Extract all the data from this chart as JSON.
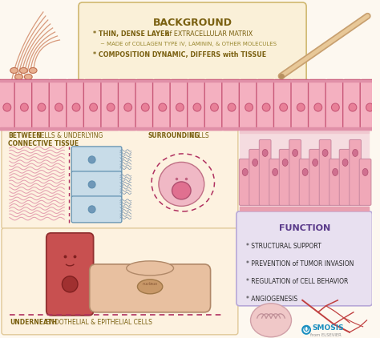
{
  "bg_color": "#fdf8f0",
  "title": "BACKGROUND",
  "title_box_color": "#faf0d8",
  "title_color": "#7a6010",
  "function_title": "FUNCTION",
  "function_box_color": "#e8e0f0",
  "function_color": "#5a3a8a",
  "func_items": [
    "* STRUCTURAL SUPPORT",
    "* PREVENTION of TUMOR INVASION",
    "* REGULATION of CELL BEHAVIOR",
    "* ANGIOGENESIS"
  ],
  "label_between": "BETWEEN CELLS & UNDERLYING\nCONNECTIVE TISSUE",
  "label_surrounding": "SURROUNDING CELLS",
  "label_underneath": "UNDERNEATH ENDOTHELIAL & EPITHELIAL CELLS",
  "label_color": "#7a6010",
  "cell_row_color_outer": "#f4b0c0",
  "cell_row_color_inner": "#fad0da",
  "cell_nucleus_color": "#e88098",
  "cell_border_color": "#c85878",
  "dashed_line_color": "#b03060",
  "osmosis_color": "#1a8fc0",
  "panel_bg": "#fdf2e0",
  "panel_bg2": "#fdf2e0",
  "blue_cell_color": "#c8dce8",
  "blue_cell_border": "#6090b0"
}
